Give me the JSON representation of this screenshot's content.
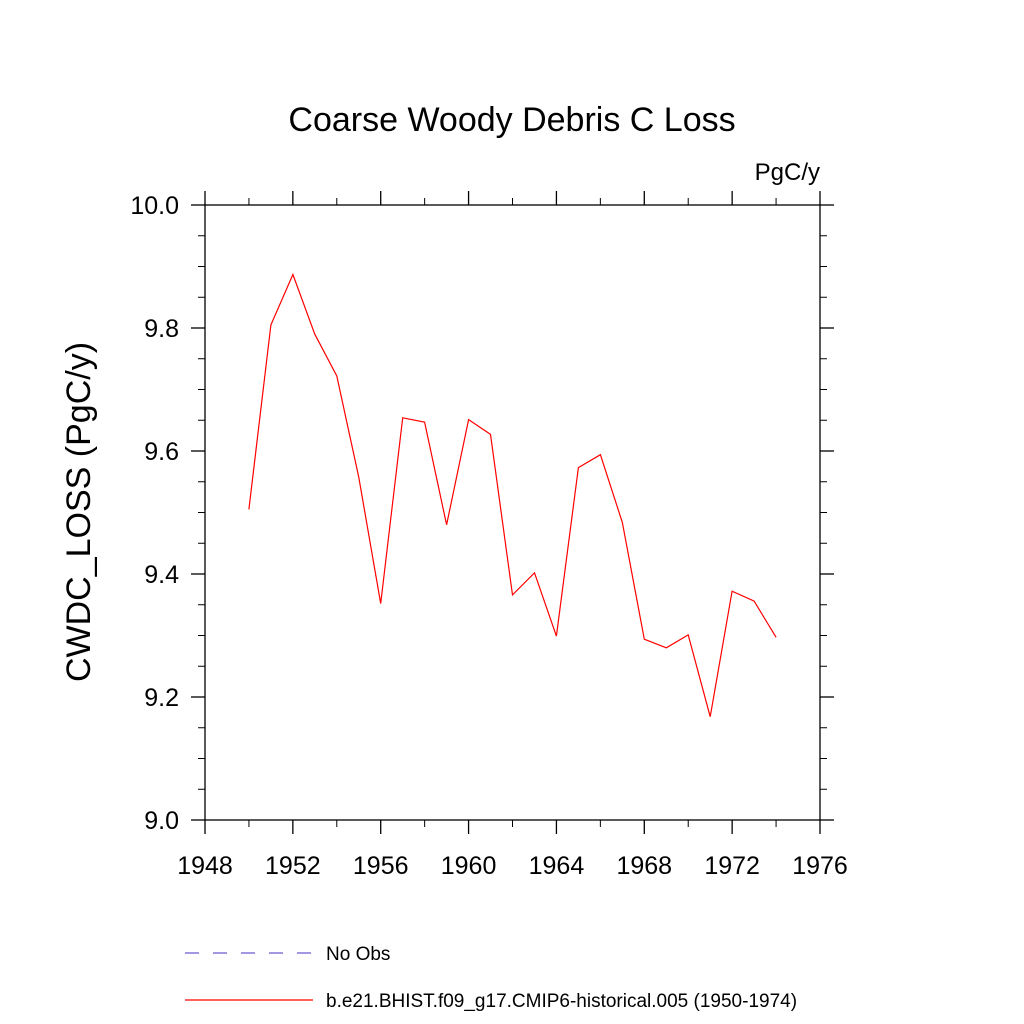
{
  "chart_data": {
    "type": "line",
    "title": "Coarse Woody Debris C Loss",
    "units_label": "PgC/y",
    "ylabel": "CWDC_LOSS  (PgC/y)",
    "xlabel": "",
    "xlim": [
      1948,
      1976
    ],
    "ylim": [
      9.0,
      10.0
    ],
    "x_ticks": [
      1948,
      1952,
      1956,
      1960,
      1964,
      1968,
      1972,
      1976
    ],
    "y_ticks": [
      9.0,
      9.2,
      9.4,
      9.6,
      9.8,
      10.0
    ],
    "y_tick_labels": [
      "9.0",
      "9.2",
      "9.4",
      "9.6",
      "9.8",
      "10.0"
    ],
    "grid": false,
    "legend_position": "bottom",
    "series": [
      {
        "name": "No Obs",
        "color": "#6a5acd",
        "dash": "dashed",
        "x": [],
        "y": []
      },
      {
        "name": "b.e21.BHIST.f09_g17.CMIP6-historical.005 (1950-1974)",
        "color": "#ff0000",
        "dash": "solid",
        "x": [
          1950,
          1951,
          1952,
          1953,
          1954,
          1955,
          1956,
          1957,
          1958,
          1959,
          1960,
          1961,
          1962,
          1963,
          1964,
          1965,
          1966,
          1967,
          1968,
          1969,
          1970,
          1971,
          1972,
          1973,
          1974
        ],
        "y": [
          9.505,
          9.805,
          9.887,
          9.79,
          9.722,
          9.557,
          9.352,
          9.654,
          9.647,
          9.48,
          9.651,
          9.627,
          9.366,
          9.402,
          9.299,
          9.573,
          9.594,
          9.484,
          9.294,
          9.28,
          9.301,
          9.168,
          9.372,
          9.356,
          9.297
        ]
      }
    ]
  }
}
